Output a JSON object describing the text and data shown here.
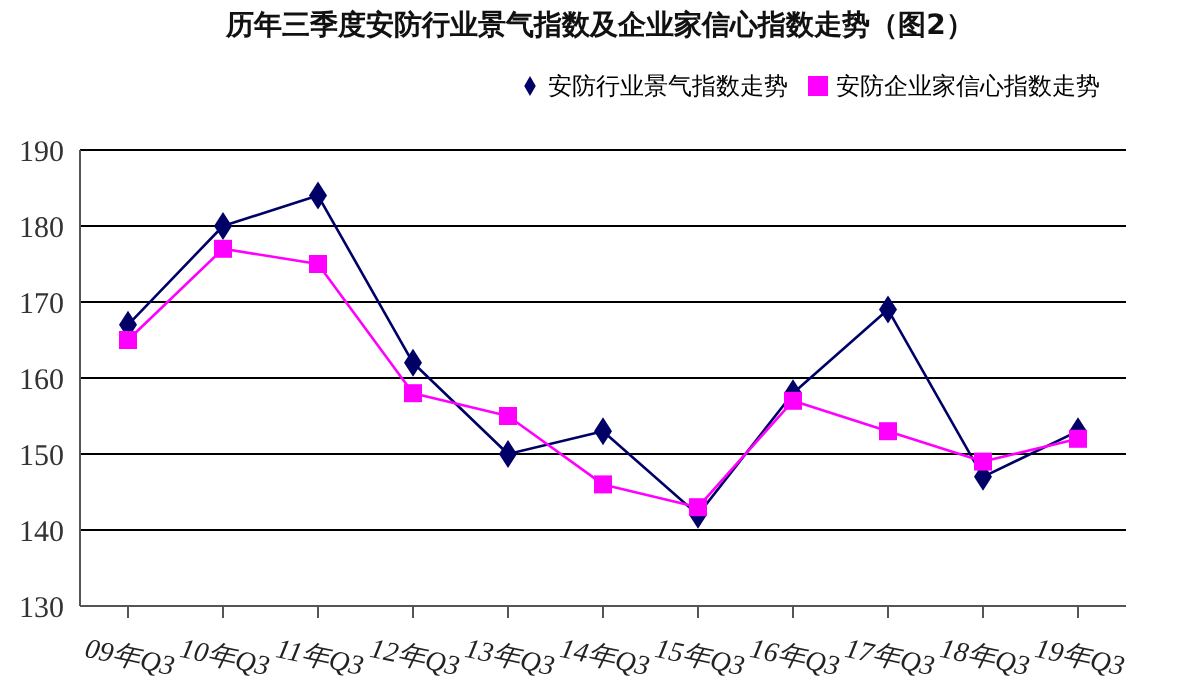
{
  "chart_data": {
    "type": "line",
    "title": "历年三季度安防行业景气指数及企业家信心指数走势（图2）",
    "categories": [
      "09年Q3",
      "10年Q3",
      "11年Q3",
      "12年Q3",
      "13年Q3",
      "14年Q3",
      "15年Q3",
      "16年Q3",
      "17年Q3",
      "18年Q3",
      "19年Q3"
    ],
    "series": [
      {
        "name": "安防行业景气指数走势",
        "color": "#000066",
        "marker": "diamond",
        "values": [
          167,
          180,
          184,
          162,
          150,
          153,
          142,
          158,
          169,
          147,
          153
        ]
      },
      {
        "name": "安防企业家信心指数走势",
        "color": "#ff00ff",
        "marker": "square",
        "values": [
          165,
          177,
          175,
          158,
          155,
          146,
          143,
          157,
          153,
          149,
          152
        ]
      }
    ],
    "ylim": [
      130,
      190
    ],
    "yticks": [
      130,
      140,
      150,
      160,
      170,
      180,
      190
    ],
    "grid": "y",
    "legend": "top right",
    "line_style": "solid"
  }
}
